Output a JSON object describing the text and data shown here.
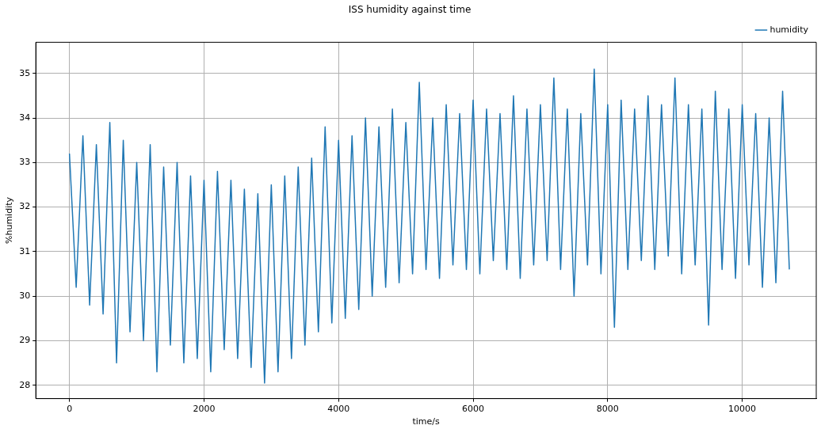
{
  "chart_data": {
    "type": "line",
    "title": "ISS humidity against time",
    "xlabel": "time/s",
    "ylabel": "%humidity",
    "x": [
      0,
      100,
      200,
      300,
      400,
      500,
      600,
      700,
      800,
      900,
      1000,
      1100,
      1200,
      1300,
      1400,
      1500,
      1600,
      1700,
      1800,
      1900,
      2000,
      2100,
      2200,
      2300,
      2400,
      2500,
      2600,
      2700,
      2800,
      2900,
      3000,
      3100,
      3200,
      3300,
      3400,
      3500,
      3600,
      3700,
      3800,
      3900,
      4000,
      4100,
      4200,
      4300,
      4400,
      4500,
      4600,
      4700,
      4800,
      4900,
      5000,
      5100,
      5200,
      5300,
      5400,
      5500,
      5600,
      5700,
      5800,
      5900,
      6000,
      6100,
      6200,
      6300,
      6400,
      6500,
      6600,
      6700,
      6800,
      6900,
      7000,
      7100,
      7200,
      7300,
      7400,
      7500,
      7600,
      7700,
      7800,
      7900,
      8000,
      8100,
      8200,
      8300,
      8400,
      8500,
      8600,
      8700,
      8800,
      8900,
      9000,
      9100,
      9200,
      9300,
      9400,
      9500,
      9600,
      9700,
      9800,
      9900,
      10000,
      10100,
      10200,
      10300,
      10400,
      10500,
      10600,
      10700
    ],
    "series": [
      {
        "name": "humidity",
        "color": "#1f77b4",
        "values": [
          33.2,
          30.2,
          33.6,
          29.8,
          33.4,
          29.6,
          33.9,
          28.5,
          33.5,
          29.2,
          33.0,
          29.0,
          33.4,
          28.3,
          32.9,
          28.9,
          33.0,
          28.5,
          32.7,
          28.6,
          32.6,
          28.3,
          32.8,
          28.8,
          32.6,
          28.6,
          32.4,
          28.4,
          32.3,
          28.05,
          32.5,
          28.3,
          32.7,
          28.6,
          32.9,
          28.9,
          33.1,
          29.2,
          33.8,
          29.4,
          33.5,
          29.5,
          33.6,
          29.7,
          34.0,
          30.0,
          33.8,
          30.2,
          34.2,
          30.3,
          33.9,
          30.5,
          34.8,
          30.6,
          34.0,
          30.4,
          34.3,
          30.7,
          34.1,
          30.6,
          34.4,
          30.5,
          34.2,
          30.8,
          34.1,
          30.6,
          34.5,
          30.4,
          34.2,
          30.7,
          34.3,
          30.8,
          34.9,
          30.6,
          34.2,
          30.0,
          34.1,
          30.7,
          35.1,
          30.5,
          34.3,
          29.3,
          34.4,
          30.6,
          34.2,
          30.8,
          34.5,
          30.6,
          34.3,
          30.9,
          34.9,
          30.5,
          34.3,
          30.7,
          34.2,
          29.35,
          34.6,
          30.6,
          34.2,
          30.4,
          34.3,
          30.7,
          34.1,
          30.2,
          34.0,
          30.3,
          34.6,
          30.6
        ]
      }
    ],
    "xlim": [
      -500,
      11100
    ],
    "ylim": [
      27.7,
      35.7
    ],
    "xticks": [
      0,
      2000,
      4000,
      6000,
      8000,
      10000
    ],
    "yticks": [
      28,
      29,
      30,
      31,
      32,
      33,
      34,
      35
    ],
    "grid": true,
    "legend": "top right",
    "marker": "none",
    "line_style": "solid"
  }
}
